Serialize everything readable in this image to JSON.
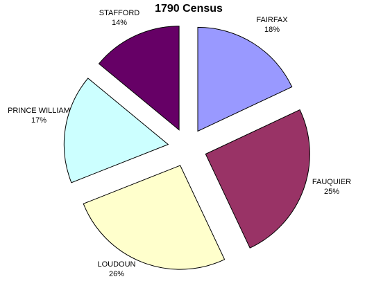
{
  "chart_data": {
    "type": "pie",
    "title": "1790 Census",
    "exploded": true,
    "slices": [
      {
        "name": "FAIRFAX",
        "value": 18,
        "label": "18%",
        "color": "#9999ff"
      },
      {
        "name": "FAUQUIER",
        "value": 25,
        "label": "25%",
        "color": "#993366"
      },
      {
        "name": "LOUDOUN",
        "value": 26,
        "label": "26%",
        "color": "#ffffcc"
      },
      {
        "name": "PRINCE WILLIAM",
        "value": 17,
        "label": "17%",
        "color": "#ccffff"
      },
      {
        "name": "STAFFORD",
        "value": 14,
        "label": "14%",
        "color": "#660066"
      }
    ]
  }
}
